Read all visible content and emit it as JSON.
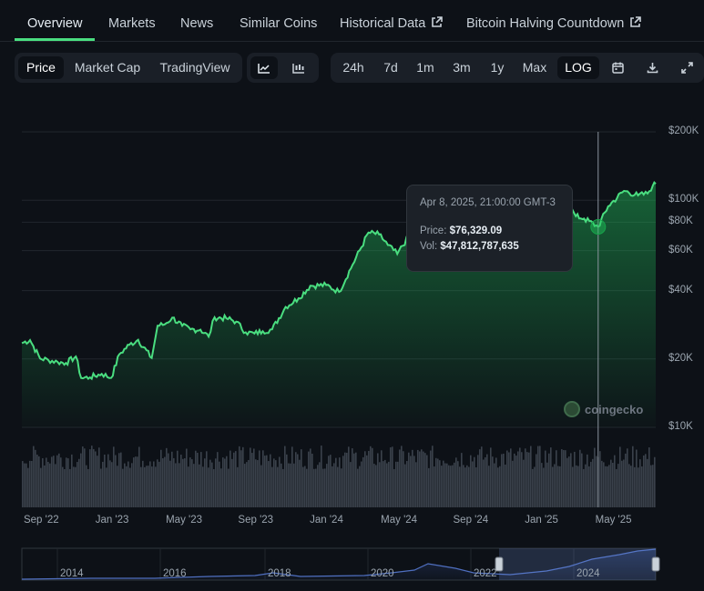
{
  "tabs": [
    {
      "label": "Overview",
      "active": true
    },
    {
      "label": "Markets"
    },
    {
      "label": "News"
    },
    {
      "label": "Similar Coins"
    },
    {
      "label": "Historical Data",
      "external": true
    },
    {
      "label": "Bitcoin Halving Countdown",
      "external": true
    }
  ],
  "toolbar": {
    "views": [
      "Price",
      "Market Cap",
      "TradingView"
    ],
    "active_view": "Price",
    "chart_styles": [
      "line-chart-icon",
      "candlestick-icon"
    ],
    "active_style": "line-chart-icon",
    "ranges": [
      "24h",
      "7d",
      "1m",
      "3m",
      "1y",
      "Max"
    ],
    "log_label": "LOG",
    "log_active": true,
    "actions": [
      "calendar-icon",
      "download-icon",
      "expand-icon"
    ]
  },
  "tooltip": {
    "date": "Apr 8, 2025, 21:00:00 GMT-3",
    "price_label": "Price:",
    "price_value": "$76,329.09",
    "vol_label": "Vol:",
    "vol_value": "$47,812,787,635"
  },
  "watermark": "coingecko",
  "colors": {
    "line": "#4ade80",
    "accent": "#4ade80",
    "background": "#0d1117"
  },
  "chart_data": {
    "type": "line",
    "log_scale": true,
    "y_ticks": [
      "$200K",
      "$100K",
      "$80K",
      "$60K",
      "$40K",
      "$20K",
      "$10K"
    ],
    "y_tick_values": [
      200000,
      100000,
      80000,
      60000,
      40000,
      20000,
      10000
    ],
    "x_ticks": [
      "Sep '22",
      "Jan '23",
      "May '23",
      "Sep '23",
      "Jan '24",
      "May '24",
      "Sep '24",
      "Jan '25",
      "May '25"
    ],
    "x_tick_dates": [
      "2022-09-01",
      "2023-01-01",
      "2023-05-01",
      "2023-09-01",
      "2024-01-01",
      "2024-05-01",
      "2024-09-01",
      "2025-01-01",
      "2025-05-01"
    ],
    "x_range": [
      "2022-08-01",
      "2025-07-15"
    ],
    "grid": true,
    "series": [
      {
        "points": [
          [
            "2022-08-01",
            23500
          ],
          [
            "2022-08-15",
            24200
          ],
          [
            "2022-09-01",
            20100
          ],
          [
            "2022-09-15",
            19800
          ],
          [
            "2022-10-01",
            19400
          ],
          [
            "2022-10-15",
            19200
          ],
          [
            "2022-11-01",
            20500
          ],
          [
            "2022-11-10",
            16500
          ],
          [
            "2022-11-25",
            16600
          ],
          [
            "2022-12-15",
            17200
          ],
          [
            "2022-12-31",
            16500
          ],
          [
            "2023-01-14",
            21000
          ],
          [
            "2023-01-31",
            23100
          ],
          [
            "2023-02-15",
            24300
          ],
          [
            "2023-03-10",
            20200
          ],
          [
            "2023-03-20",
            28000
          ],
          [
            "2023-04-01",
            28400
          ],
          [
            "2023-04-14",
            30400
          ],
          [
            "2023-05-01",
            28000
          ],
          [
            "2023-05-15",
            27000
          ],
          [
            "2023-06-01",
            26900
          ],
          [
            "2023-06-15",
            25100
          ],
          [
            "2023-06-25",
            30500
          ],
          [
            "2023-07-15",
            30200
          ],
          [
            "2023-08-01",
            29200
          ],
          [
            "2023-08-17",
            26200
          ],
          [
            "2023-09-01",
            25900
          ],
          [
            "2023-09-15",
            26500
          ],
          [
            "2023-10-01",
            27000
          ],
          [
            "2023-10-24",
            33900
          ],
          [
            "2023-11-15",
            37000
          ],
          [
            "2023-12-05",
            42000
          ],
          [
            "2024-01-01",
            42300
          ],
          [
            "2024-01-23",
            39500
          ],
          [
            "2024-02-15",
            52000
          ],
          [
            "2024-03-13",
            72000
          ],
          [
            "2024-03-31",
            70700
          ],
          [
            "2024-04-15",
            63500
          ],
          [
            "2024-05-01",
            58000
          ],
          [
            "2024-05-20",
            69000
          ],
          [
            "2024-06-10",
            69600
          ],
          [
            "2024-07-05",
            56000
          ],
          [
            "2024-07-28",
            68000
          ],
          [
            "2024-08-05",
            54000
          ],
          [
            "2024-08-25",
            64000
          ],
          [
            "2024-09-06",
            54000
          ],
          [
            "2024-09-30",
            63500
          ],
          [
            "2024-10-28",
            70000
          ],
          [
            "2024-11-13",
            90000
          ],
          [
            "2024-12-05",
            99000
          ],
          [
            "2024-12-17",
            106000
          ],
          [
            "2025-01-01",
            94000
          ],
          [
            "2025-01-20",
            104000
          ],
          [
            "2025-02-15",
            96000
          ],
          [
            "2025-03-01",
            85000
          ],
          [
            "2025-03-15",
            83000
          ],
          [
            "2025-04-08",
            76329
          ],
          [
            "2025-04-25",
            94000
          ],
          [
            "2025-05-22",
            110000
          ],
          [
            "2025-06-15",
            105000
          ],
          [
            "2025-07-01",
            107000
          ],
          [
            "2025-07-10",
            116000
          ],
          [
            "2025-07-15",
            118000
          ]
        ]
      }
    ],
    "hover_date": "2025-04-08",
    "hover_value": 76329.09
  },
  "navigator": {
    "x_ticks": [
      "2014",
      "2016",
      "2018",
      "2020",
      "2022",
      "2024"
    ]
  }
}
